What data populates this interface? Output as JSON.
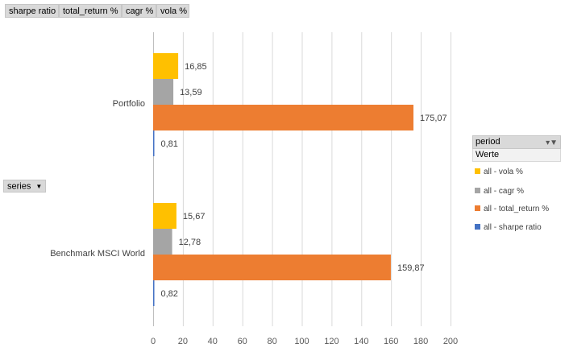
{
  "field_buttons": [
    "sharpe ratio",
    "total_return %",
    "cagr %",
    "vola %"
  ],
  "axis_button": "series",
  "legend": {
    "title": "period",
    "subtitle": "Werte",
    "items": [
      {
        "label": "all - vola %",
        "color": "#ffc000"
      },
      {
        "label": "all - cagr %",
        "color": "#a5a5a5"
      },
      {
        "label": "all - total_return %",
        "color": "#ed7d31"
      },
      {
        "label": "all - sharpe ratio",
        "color": "#4472c4"
      }
    ]
  },
  "chart_data": {
    "type": "bar",
    "orientation": "horizontal",
    "categories": [
      "Portfolio",
      "Benchmark MSCI World"
    ],
    "series": [
      {
        "name": "all - vola %",
        "color": "#ffc000",
        "values": [
          16.85,
          15.67
        ],
        "labels": [
          "16,85",
          "15,67"
        ]
      },
      {
        "name": "all - cagr %",
        "color": "#a5a5a5",
        "values": [
          13.59,
          12.78
        ],
        "labels": [
          "13,59",
          "12,78"
        ]
      },
      {
        "name": "all - total_return %",
        "color": "#ed7d31",
        "values": [
          175.07,
          159.87
        ],
        "labels": [
          "175,07",
          "159,87"
        ]
      },
      {
        "name": "all - sharpe ratio",
        "color": "#4472c4",
        "values": [
          0.81,
          0.82
        ],
        "labels": [
          "0,81",
          "0,82"
        ]
      }
    ],
    "xlim": [
      0,
      200
    ],
    "xticks": [
      0,
      20,
      40,
      60,
      80,
      100,
      120,
      140,
      160,
      180,
      200
    ],
    "grid": "vertical",
    "legend_position": "right"
  }
}
